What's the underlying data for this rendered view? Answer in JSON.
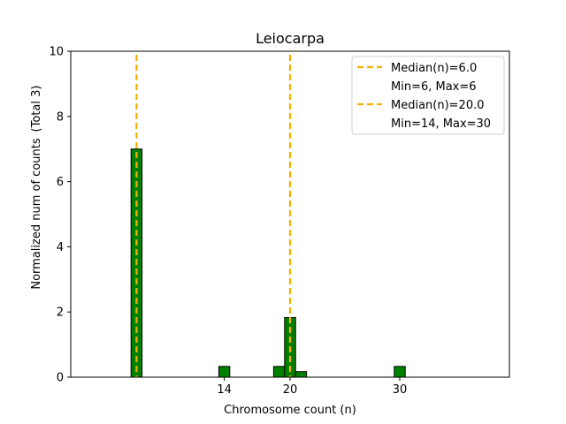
{
  "chart_data": {
    "type": "bar",
    "title": "Leiocarpa",
    "xlabel": "Chromosome count (n)",
    "ylabel": "Normalized num of counts",
    "ylabel_secondary": "(Total 3)",
    "xlim": [
      0,
      40
    ],
    "ylim": [
      0,
      10
    ],
    "xticks": [
      14,
      20,
      30
    ],
    "yticks": [
      0,
      2,
      4,
      6,
      8,
      10
    ],
    "bar_color": "#008000",
    "bar_edge_color": "#000000",
    "bar_width": 1,
    "bars": [
      {
        "x": 6,
        "value": 7.0
      },
      {
        "x": 14,
        "value": 0.33
      },
      {
        "x": 19,
        "value": 0.33
      },
      {
        "x": 20,
        "value": 1.83
      },
      {
        "x": 21,
        "value": 0.17
      },
      {
        "x": 30,
        "value": 0.33
      }
    ],
    "baseline_segments": [
      [
        0,
        5.5
      ],
      [
        6.5,
        9.5
      ]
    ],
    "median_lines": [
      {
        "x": 6.0,
        "color": "#f5b000",
        "legend_label": "Median(n)=6.0",
        "legend_sublabel": "Min=6, Max=6"
      },
      {
        "x": 20.0,
        "color": "#f5b000",
        "legend_label": "Median(n)=20.0",
        "legend_sublabel": "Min=14, Max=30"
      }
    ],
    "legend_position": "top-right",
    "grid": false
  }
}
